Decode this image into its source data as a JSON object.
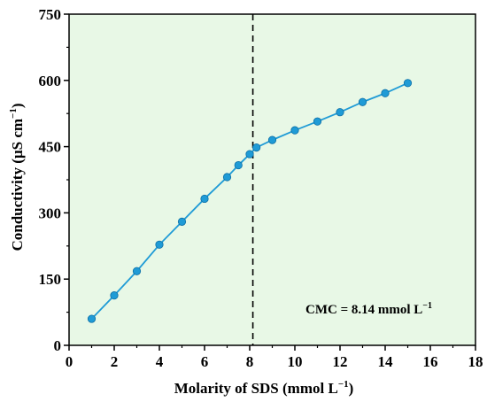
{
  "chart_data": {
    "type": "line",
    "title": "",
    "xlabel_main": "Molarity of SDS (mmol L",
    "xlabel_sup": "−1",
    "xlabel_tail": ")",
    "ylabel_main": "Conductivity (µS cm",
    "ylabel_sup": "−1",
    "ylabel_tail": ")",
    "xlim": [
      0,
      18
    ],
    "ylim": [
      0,
      750
    ],
    "xticks": [
      "0",
      "2",
      "4",
      "6",
      "8",
      "10",
      "12",
      "14",
      "16",
      "18"
    ],
    "yticks": [
      "0",
      "150",
      "300",
      "450",
      "600",
      "750"
    ],
    "plot_background": "#e8f8e6",
    "series": [
      {
        "color": "#1f9bd6",
        "points": [
          {
            "x": 1,
            "y": 60
          },
          {
            "x": 2,
            "y": 113
          },
          {
            "x": 3,
            "y": 168
          },
          {
            "x": 4,
            "y": 228
          },
          {
            "x": 5,
            "y": 280
          },
          {
            "x": 6,
            "y": 332
          },
          {
            "x": 7,
            "y": 381
          },
          {
            "x": 7.5,
            "y": 408
          },
          {
            "x": 8,
            "y": 433
          },
          {
            "x": 8.3,
            "y": 448
          },
          {
            "x": 9,
            "y": 465
          },
          {
            "x": 10,
            "y": 487
          },
          {
            "x": 11,
            "y": 507
          },
          {
            "x": 12,
            "y": 528
          },
          {
            "x": 13,
            "y": 551
          },
          {
            "x": 14,
            "y": 571
          },
          {
            "x": 15,
            "y": 594
          }
        ]
      }
    ],
    "cmc_line_x": 8.14,
    "annotation_main": "CMC = 8.14 mmol L",
    "annotation_sup": "−1"
  }
}
